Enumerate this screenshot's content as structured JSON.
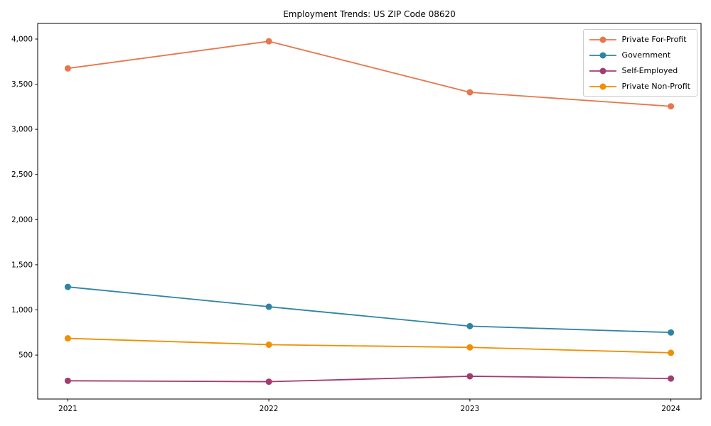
{
  "chart_data": {
    "type": "line",
    "title": "Employment Trends: US ZIP Code 08620",
    "categories": [
      2021,
      2022,
      2023,
      2024
    ],
    "series": [
      {
        "name": "Private For-Profit",
        "color": "#e8764d",
        "values": [
          3675,
          3975,
          3410,
          3255
        ]
      },
      {
        "name": "Government",
        "color": "#2e84a4",
        "values": [
          1255,
          1035,
          820,
          750
        ]
      },
      {
        "name": "Self-Employed",
        "color": "#a23b72",
        "values": [
          215,
          205,
          265,
          240
        ]
      },
      {
        "name": "Private Non-Profit",
        "color": "#f18f01",
        "values": [
          685,
          615,
          585,
          525
        ]
      }
    ],
    "xlabel": "",
    "ylabel": "",
    "xlim": [
      2020.85,
      2024.15
    ],
    "ylim": [
      13,
      4173
    ],
    "x_ticks": [
      2021,
      2022,
      2023,
      2024
    ],
    "y_ticks": [
      500,
      1000,
      1500,
      2000,
      2500,
      3000,
      3500,
      4000
    ],
    "grid": false,
    "legend_position": "upper right",
    "axis_color": "#000000"
  }
}
